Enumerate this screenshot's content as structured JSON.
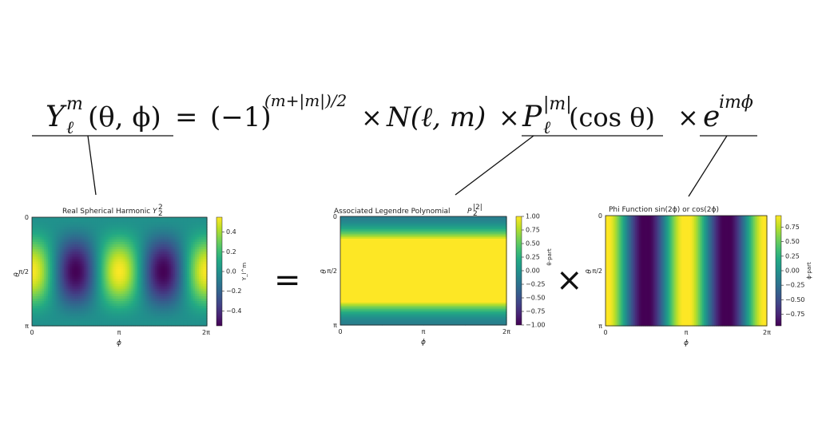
{
  "equation": {
    "lhs": {
      "base": "Y",
      "sup": "m",
      "sub": "ℓ",
      "args": "(θ, ϕ)"
    },
    "equals": "=",
    "sign_term": {
      "base": "(−1)",
      "sup": "(m+|m|)/2"
    },
    "times": "×",
    "norm_term": "N(ℓ, m)",
    "legendre_term": {
      "base": "P",
      "sup": "|m|",
      "sub": "ℓ",
      "args": "(cos θ)"
    },
    "phase_term": {
      "base": "e",
      "sup": "imϕ"
    }
  },
  "operators": {
    "equals": "=",
    "times": "×"
  },
  "axis_common": {
    "ylabel": "θ",
    "xlabel": "ϕ",
    "y_ticks": [
      "0",
      "π/2",
      "π"
    ],
    "x_ticks": [
      "0",
      "π",
      "2π"
    ]
  },
  "panels": [
    {
      "id": "spherical",
      "title_prefix": "Real Spherical Harmonic ",
      "title_math": {
        "base": "Y",
        "sup": "2",
        "sub": "2"
      },
      "colorbar_label": "Y_l^m",
      "colorbar_ticks": [
        "0.4",
        "0.2",
        "0.0",
        "−0.2",
        "−0.4"
      ],
      "colorbar_values": [
        0.4,
        0.2,
        0.0,
        -0.2,
        -0.4
      ],
      "colorbar_range": [
        -0.55,
        0.55
      ]
    },
    {
      "id": "legendre",
      "title_prefix": "Associated Legendre Polynomial ",
      "title_math": {
        "base": "P",
        "sup": "|2|",
        "sub": "2"
      },
      "colorbar_label": "θ-part",
      "colorbar_ticks": [
        "1.00",
        "0.75",
        "0.50",
        "0.25",
        "0.00",
        "−0.25",
        "−0.50",
        "−0.75",
        "−1.00"
      ],
      "colorbar_values": [
        1.0,
        0.75,
        0.5,
        0.25,
        0.0,
        -0.25,
        -0.5,
        -0.75,
        -1.0
      ],
      "colorbar_range": [
        -1.0,
        1.0
      ]
    },
    {
      "id": "phi",
      "title_prefix": "Phi Function sin(2ϕ) or cos(2ϕ)",
      "title_math": null,
      "colorbar_label": "ϕ-part",
      "colorbar_ticks": [
        "0.75",
        "0.50",
        "0.25",
        "0.00",
        "−0.25",
        "−0.50",
        "−0.75"
      ],
      "colorbar_values": [
        0.75,
        0.5,
        0.25,
        0.0,
        -0.25,
        -0.5,
        -0.75
      ],
      "colorbar_range": [
        -0.95,
        0.95
      ]
    }
  ],
  "colors": {
    "viridis": [
      "#440154",
      "#482475",
      "#414487",
      "#355f8d",
      "#2a788e",
      "#21918c",
      "#22a884",
      "#44bf70",
      "#7ad151",
      "#bddf26",
      "#fde725"
    ]
  }
}
